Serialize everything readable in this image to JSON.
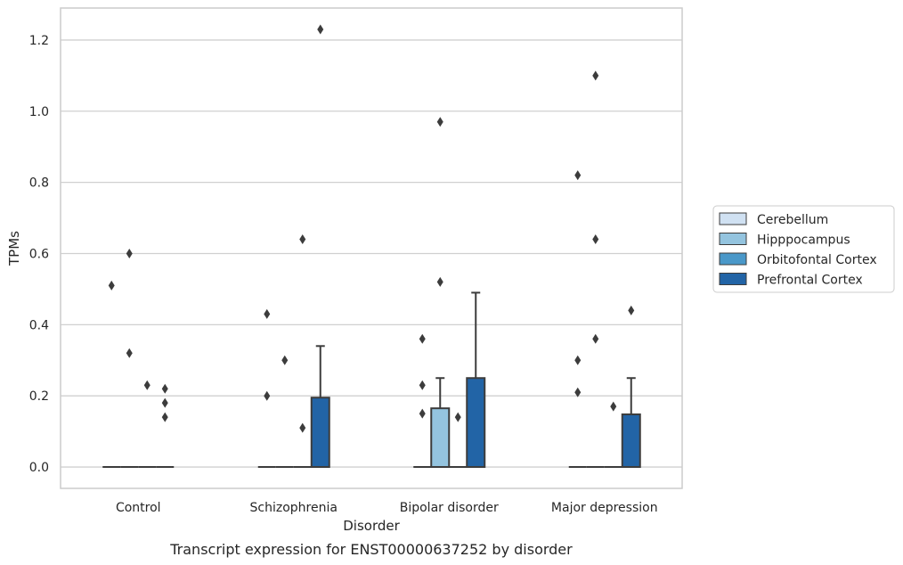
{
  "chart_data": {
    "type": "box",
    "title": "",
    "caption": "Transcript expression for ENST00000637252 by disorder",
    "xlabel": "Disorder",
    "ylabel": "TPMs",
    "ylim": [
      -0.06,
      1.29
    ],
    "yticks": [
      0.0,
      0.2,
      0.4,
      0.6,
      0.8,
      1.0,
      1.2
    ],
    "ytick_labels": [
      "0.0",
      "0.2",
      "0.4",
      "0.6",
      "0.8",
      "1.0",
      "1.2"
    ],
    "grid": "horizontal",
    "legend_position": "right",
    "categories": [
      "Control",
      "Schizophrenia",
      "Bipolar disorder",
      "Major depression"
    ],
    "series": [
      {
        "name": "Cerebellum",
        "color": "#d0e1f2",
        "boxes": [
          {
            "q1": 0,
            "median": 0,
            "q3": 0,
            "whisker_low": 0,
            "whisker_high": 0,
            "outliers": [
              0.51
            ]
          },
          {
            "q1": 0,
            "median": 0,
            "q3": 0,
            "whisker_low": 0,
            "whisker_high": 0,
            "outliers": [
              0.43,
              0.2
            ]
          },
          {
            "q1": 0,
            "median": 0,
            "q3": 0,
            "whisker_low": 0,
            "whisker_high": 0,
            "outliers": [
              0.36,
              0.23,
              0.15
            ]
          },
          {
            "q1": 0,
            "median": 0,
            "q3": 0,
            "whisker_low": 0,
            "whisker_high": 0,
            "outliers": [
              0.82,
              0.3,
              0.21
            ]
          }
        ]
      },
      {
        "name": "Hipppocampus",
        "color": "#94c4df",
        "boxes": [
          {
            "q1": 0,
            "median": 0,
            "q3": 0,
            "whisker_low": 0,
            "whisker_high": 0,
            "outliers": [
              0.6,
              0.32
            ]
          },
          {
            "q1": 0,
            "median": 0,
            "q3": 0,
            "whisker_low": 0,
            "whisker_high": 0,
            "outliers": [
              0.3
            ]
          },
          {
            "q1": 0,
            "median": 0,
            "q3": 0.165,
            "whisker_low": 0,
            "whisker_high": 0.25,
            "outliers": [
              0.97,
              0.52
            ]
          },
          {
            "q1": 0,
            "median": 0,
            "q3": 0,
            "whisker_low": 0,
            "whisker_high": 0,
            "outliers": [
              1.1,
              0.64,
              0.36
            ]
          }
        ]
      },
      {
        "name": "Orbitofontal Cortex",
        "color": "#4a98c9",
        "boxes": [
          {
            "q1": 0,
            "median": 0,
            "q3": 0,
            "whisker_low": 0,
            "whisker_high": 0,
            "outliers": [
              0.23
            ]
          },
          {
            "q1": 0,
            "median": 0,
            "q3": 0,
            "whisker_low": 0,
            "whisker_high": 0,
            "outliers": [
              0.64,
              0.11
            ]
          },
          {
            "q1": 0,
            "median": 0,
            "q3": 0,
            "whisker_low": 0,
            "whisker_high": 0,
            "outliers": [
              0.14
            ]
          },
          {
            "q1": 0,
            "median": 0,
            "q3": 0,
            "whisker_low": 0,
            "whisker_high": 0,
            "outliers": [
              0.17
            ]
          }
        ]
      },
      {
        "name": "Prefrontal Cortex",
        "color": "#2264a6",
        "boxes": [
          {
            "q1": 0,
            "median": 0,
            "q3": 0,
            "whisker_low": 0,
            "whisker_high": 0,
            "outliers": [
              0.22,
              0.18,
              0.14
            ]
          },
          {
            "q1": 0,
            "median": 0,
            "q3": 0.195,
            "whisker_low": 0,
            "whisker_high": 0.34,
            "outliers": [
              1.23
            ]
          },
          {
            "q1": 0,
            "median": 0,
            "q3": 0.25,
            "whisker_low": 0,
            "whisker_high": 0.49,
            "outliers": []
          },
          {
            "q1": 0,
            "median": 0,
            "q3": 0.148,
            "whisker_low": 0,
            "whisker_high": 0.25,
            "outliers": [
              0.44
            ]
          }
        ]
      }
    ]
  }
}
